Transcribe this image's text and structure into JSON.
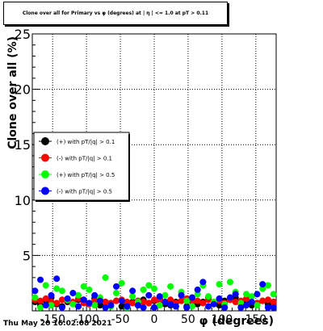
{
  "title": "Clone  over all for Primary vs φ (degrees) at | η | <= 1.0 at pT > 0.11",
  "timestamp": "Thu May 20 16:02:08 2021",
  "chart_data": {
    "type": "scatter",
    "xlabel": "φ (degrees)",
    "ylabel": "Clone  over all (%)",
    "xlim": [
      -180,
      180
    ],
    "ylim": [
      0,
      25
    ],
    "xticks": [
      -150,
      -100,
      -50,
      0,
      50,
      100,
      150
    ],
    "yticks": [
      0,
      5,
      10,
      15,
      20,
      25
    ],
    "grid": true,
    "legend_position": "left-middle",
    "legend": [
      {
        "label": "(+) with pT/|q| > 0.1",
        "color": "#000000"
      },
      {
        "label": "(-) with pT/|q| > 0.1",
        "color": "#ff0000"
      },
      {
        "label": "(+) with pT/|q| > 0.5",
        "color": "#00ff00"
      },
      {
        "label": "(-) with pT/|q| > 0.5",
        "color": "#0000ff"
      }
    ],
    "series": [
      {
        "name": "(+) with pT/|q| > 0.1",
        "color": "#000000",
        "x": [
          -176,
          -168,
          -160,
          -152,
          -144,
          -136,
          -128,
          -120,
          -112,
          -104,
          -96,
          -88,
          -80,
          -72,
          -64,
          -56,
          -48,
          -40,
          -32,
          -24,
          -16,
          -8,
          0,
          8,
          16,
          24,
          32,
          40,
          48,
          56,
          64,
          72,
          80,
          88,
          96,
          104,
          112,
          120,
          128,
          136,
          144,
          152,
          160,
          168,
          176
        ],
        "y": [
          0.8,
          0.5,
          0.9,
          1.2,
          0.6,
          0.4,
          0.8,
          0.7,
          1.0,
          0.9,
          0.6,
          1.1,
          0.5,
          0.8,
          0.7,
          0.9,
          0.4,
          0.6,
          0.8,
          0.5,
          1.0,
          0.7,
          0.9,
          1.1,
          0.6,
          0.5,
          0.8,
          0.9,
          0.4,
          1.0,
          0.6,
          0.8,
          1.2,
          0.7,
          0.5,
          0.9,
          1.0,
          1.2,
          0.6,
          0.8,
          0.5,
          0.7,
          0.9,
          0.6,
          0.8
        ]
      },
      {
        "name": "(-) with pT/|q| > 0.1",
        "color": "#ff0000",
        "x": [
          -176,
          -168,
          -160,
          -152,
          -144,
          -136,
          -128,
          -120,
          -112,
          -104,
          -96,
          -88,
          -80,
          -72,
          -64,
          -56,
          -48,
          -40,
          -32,
          -24,
          -16,
          -8,
          0,
          8,
          16,
          24,
          32,
          40,
          48,
          56,
          64,
          72,
          80,
          88,
          96,
          104,
          112,
          120,
          128,
          136,
          144,
          152,
          160,
          168,
          176
        ],
        "y": [
          1.0,
          0.9,
          1.1,
          0.8,
          0.7,
          1.0,
          0.9,
          0.8,
          1.1,
          0.7,
          0.6,
          0.9,
          1.0,
          0.8,
          0.7,
          0.9,
          1.0,
          0.8,
          0.7,
          0.9,
          0.8,
          0.7,
          1.0,
          0.9,
          0.8,
          1.0,
          0.7,
          0.9,
          1.1,
          0.8,
          0.9,
          0.7,
          1.0,
          0.8,
          0.9,
          0.7,
          1.0,
          0.8,
          0.9,
          1.1,
          0.8,
          0.7,
          0.9,
          1.0,
          0.8
        ]
      },
      {
        "name": "(+) with pT/|q| > 0.5",
        "color": "#00ff00",
        "x": [
          -176,
          -168,
          -160,
          -152,
          -144,
          -136,
          -128,
          -120,
          -112,
          -104,
          -96,
          -88,
          -80,
          -72,
          -64,
          -56,
          -48,
          -40,
          -32,
          -24,
          -16,
          -8,
          0,
          8,
          16,
          24,
          32,
          40,
          48,
          56,
          64,
          72,
          80,
          88,
          96,
          104,
          112,
          120,
          128,
          136,
          144,
          152,
          160,
          168,
          176
        ],
        "y": [
          1.2,
          0.3,
          2.3,
          0.5,
          2.0,
          1.8,
          1.0,
          0.6,
          1.4,
          2.2,
          1.9,
          0.5,
          1.2,
          3.0,
          0.4,
          1.6,
          2.5,
          0.3,
          1.3,
          0.8,
          1.9,
          2.3,
          2.0,
          0.5,
          1.4,
          2.2,
          0.4,
          1.7,
          0.9,
          0.4,
          1.5,
          2.3,
          1.3,
          0.8,
          2.4,
          0.6,
          2.6,
          1.7,
          0.7,
          1.5,
          1.3,
          0.5,
          2.0,
          2.3,
          1.5
        ]
      },
      {
        "name": "(-) with pT/|q| > 0.5",
        "color": "#0000ff",
        "x": [
          -176,
          -168,
          -160,
          -152,
          -144,
          -136,
          -128,
          -120,
          -112,
          -104,
          -96,
          -88,
          -80,
          -72,
          -64,
          -56,
          -48,
          -40,
          -32,
          -24,
          -16,
          -8,
          0,
          8,
          16,
          24,
          32,
          40,
          48,
          56,
          64,
          72,
          80,
          88,
          96,
          104,
          112,
          120,
          128,
          136,
          144,
          152,
          160,
          168,
          176
        ],
        "y": [
          1.8,
          2.8,
          0.5,
          1.4,
          2.9,
          0.3,
          1.1,
          1.6,
          0.4,
          1.0,
          0.7,
          1.4,
          0.9,
          0.3,
          0.5,
          2.2,
          0.9,
          0.4,
          1.8,
          0.5,
          0.3,
          1.4,
          0.3,
          1.3,
          0.8,
          0.6,
          0.4,
          1.4,
          0.3,
          1.2,
          1.9,
          2.6,
          0.4,
          0.6,
          1.1,
          0.3,
          1.2,
          1.5,
          0.3,
          0.5,
          0.8,
          1.5,
          2.4,
          0.3,
          0.3
        ]
      }
    ]
  }
}
